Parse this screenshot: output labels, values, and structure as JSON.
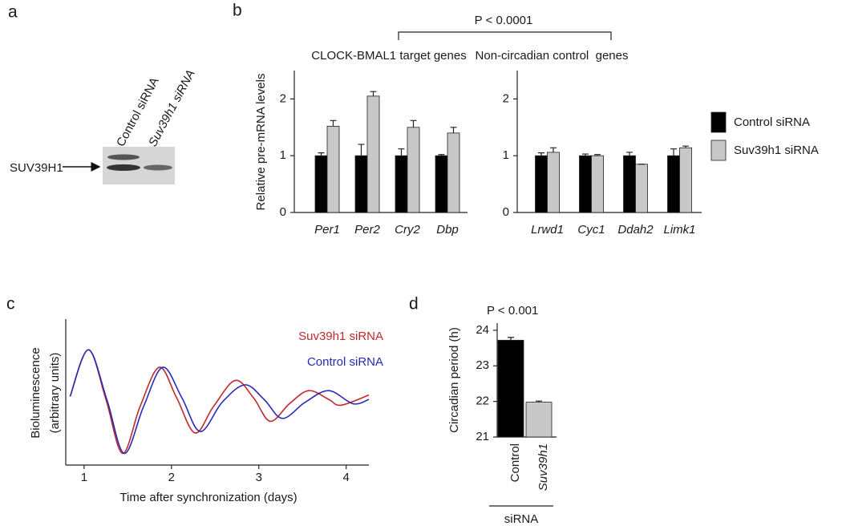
{
  "panel_a": {
    "label": "a",
    "lanes": [
      "Control siRNA",
      "Suv39h1 siRNA"
    ],
    "band_label": "SUV39H1"
  },
  "chart_data": [
    {
      "type": "bar",
      "panel": "b",
      "title": "CLOCK-BMAL1 target genes",
      "ylabel": "Relative pre-mRNA levels",
      "annotation": "P < 0.0001",
      "categories": [
        "Per1",
        "Per2",
        "Cry2",
        "Dbp"
      ],
      "ylim": [
        0,
        2.5
      ],
      "yticks": [
        0,
        1,
        2
      ],
      "series": [
        {
          "name": "Control siRNA",
          "color": "#000000",
          "values": [
            1.0,
            1.0,
            1.0,
            1.0
          ],
          "errors": [
            0.05,
            0.2,
            0.12,
            0.02
          ]
        },
        {
          "name": "Suv39h1 siRNA",
          "color": "#c8c8c8",
          "values": [
            1.52,
            2.05,
            1.5,
            1.4
          ],
          "errors": [
            0.1,
            0.08,
            0.12,
            0.1
          ]
        }
      ]
    },
    {
      "type": "bar",
      "title": "Non-circadian control  genes",
      "categories": [
        "Lrwd1",
        "Cyc1",
        "Ddah2",
        "Limk1"
      ],
      "ylim": [
        0,
        2.5
      ],
      "yticks": [
        0,
        1,
        2
      ],
      "series": [
        {
          "color": "#000000",
          "values": [
            1.0,
            1.0,
            1.0,
            1.0
          ],
          "errors": [
            0.05,
            0.03,
            0.06,
            0.12
          ]
        },
        {
          "color": "#c8c8c8",
          "values": [
            1.06,
            1.0,
            0.85,
            1.14
          ],
          "errors": [
            0.08,
            0.02,
            0,
            0.03
          ]
        }
      ]
    },
    {
      "type": "line",
      "panel": "c",
      "xlabel": "Time after synchronization (days)",
      "ylabel": [
        "Bioluminescence",
        "(arbitrary units)"
      ],
      "xlim": [
        0.79,
        4.26
      ],
      "xticks": [
        1,
        2,
        3,
        4
      ],
      "ylim": [
        0,
        100
      ],
      "series": [
        {
          "name": "Suv39h1 siRNA",
          "color": "#c0282d",
          "x": [
            0.84,
            1.05,
            1.25,
            1.44,
            1.64,
            1.86,
            2.06,
            2.27,
            2.48,
            2.73,
            2.94,
            3.13,
            3.35,
            3.57,
            3.8,
            3.94,
            4.26
          ],
          "values": [
            47,
            79,
            45,
            8,
            40,
            67,
            46,
            22,
            40,
            58,
            46,
            30,
            42,
            51,
            45,
            41,
            48
          ]
        },
        {
          "name": "Control siRNA",
          "color": "#2a2ab8",
          "x": [
            0.84,
            1.05,
            1.26,
            1.46,
            1.68,
            1.9,
            2.12,
            2.33,
            2.58,
            2.84,
            3.06,
            3.27,
            3.53,
            3.8,
            4.08,
            4.26
          ],
          "values": [
            47,
            79,
            45,
            8,
            40,
            67,
            46,
            23,
            43,
            55,
            45,
            32,
            43,
            51,
            42,
            45
          ]
        }
      ]
    },
    {
      "type": "bar",
      "panel": "d",
      "ylabel": "Circadian period (h)",
      "annotation": "P < 0.001",
      "group_label": "siRNA",
      "categories": [
        "Control",
        "Suv39h1"
      ],
      "values": [
        23.72,
        21.98
      ],
      "errors": [
        0.08,
        0.03
      ],
      "colors": [
        "#000000",
        "#c8c8c8"
      ],
      "ylim": [
        21,
        24.2
      ],
      "yticks": [
        21,
        22,
        23,
        24
      ]
    }
  ]
}
